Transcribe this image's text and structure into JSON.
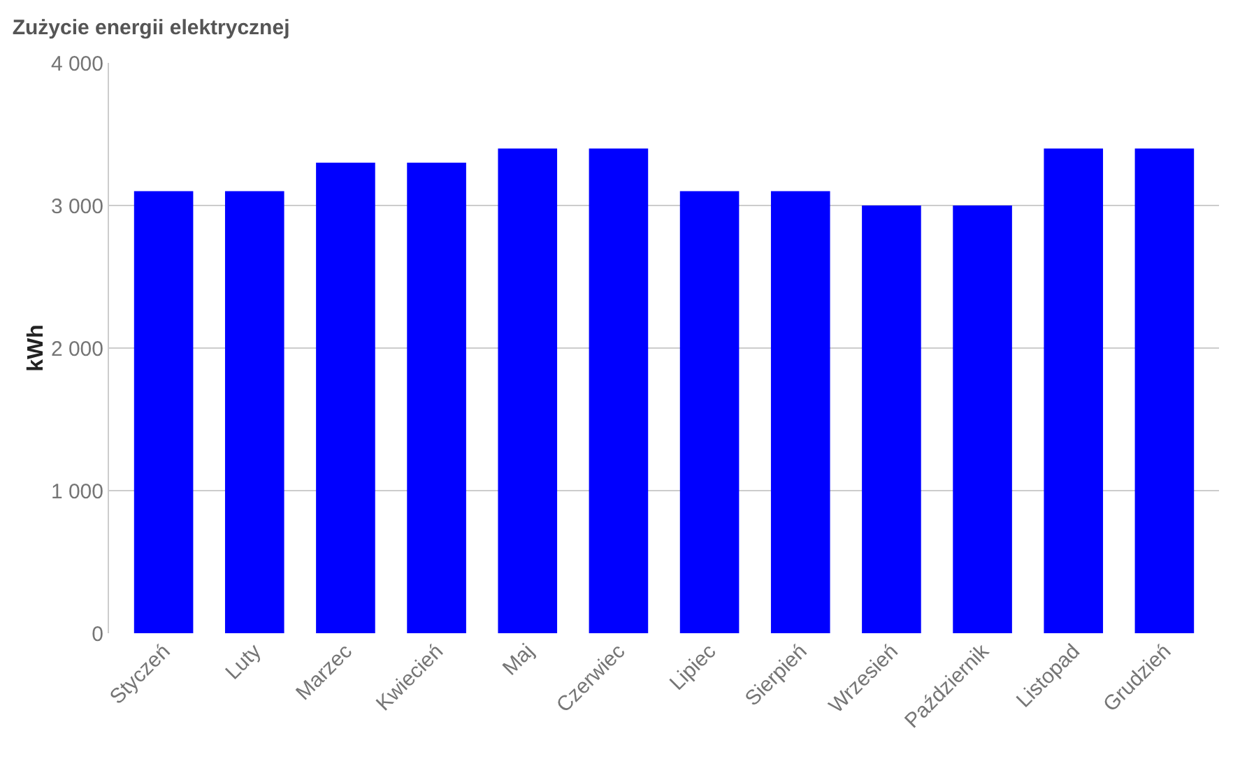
{
  "chart_data": {
    "type": "bar",
    "title": "Zużycie energii elektrycznej",
    "ylabel": "kWh",
    "categories": [
      "Styczeń",
      "Luty",
      "Marzec",
      "Kwiecień",
      "Maj",
      "Czerwiec",
      "Lipiec",
      "Sierpień",
      "Wrzesień",
      "Październik",
      "Listopad",
      "Grudzień"
    ],
    "values": [
      3100,
      3100,
      3300,
      3300,
      3400,
      3400,
      3100,
      3100,
      3000,
      3000,
      3400,
      3400
    ],
    "color": "#0000ff",
    "ylim": [
      0,
      4000
    ],
    "yticks": [
      0,
      {
        "value": 1000,
        "label": "1 000"
      },
      {
        "value": 2000,
        "label": "2 000"
      },
      {
        "value": 3000,
        "label": "3 000"
      },
      {
        "value": 4000,
        "label": "4 000"
      }
    ],
    "grid": "y"
  }
}
